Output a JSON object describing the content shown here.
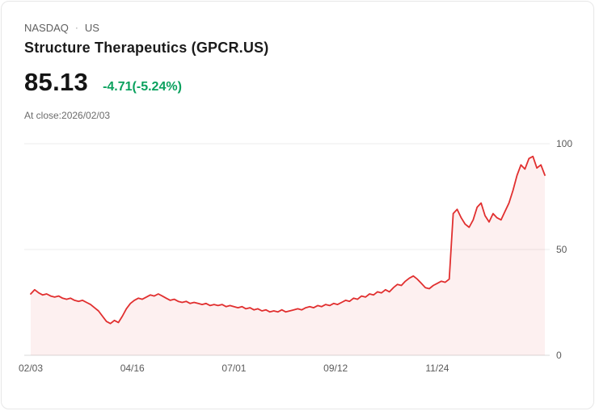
{
  "header": {
    "exchange": "NASDAQ",
    "separator": "·",
    "region": "US",
    "title": "Structure Therapeutics (GPCR.US)",
    "price": "85.13",
    "change": "-4.71(-5.24%)",
    "as_of": "At close:2026/02/03"
  },
  "colors": {
    "line": "#e12f2f",
    "fill": "rgba(225,47,47,0.07)",
    "change_green": "#0aa15e",
    "grid": "#ececec",
    "axis": "#d9d9d9",
    "axis_label": "#5a5a5a"
  },
  "chart_data": {
    "type": "area",
    "series_name": "GPCR.US price",
    "title": "",
    "xlabel": "",
    "ylabel": "",
    "ylim": [
      0,
      100
    ],
    "y_ticks": [
      0,
      50,
      100
    ],
    "y_axis_side": "right",
    "grid": true,
    "legend": false,
    "x_tick_labels": [
      "02/03",
      "04/16",
      "07/01",
      "09/12",
      "11/24"
    ],
    "x_tick_days": [
      0,
      51,
      102,
      153,
      204
    ],
    "day_step": 2,
    "values": [
      29.0,
      31.0,
      29.5,
      28.5,
      29.0,
      28.0,
      27.5,
      28.0,
      27.0,
      26.5,
      27.0,
      26.0,
      25.5,
      26.0,
      25.0,
      24.0,
      22.5,
      21.0,
      18.5,
      16.0,
      15.0,
      16.5,
      15.5,
      18.5,
      22.0,
      24.5,
      26.0,
      27.0,
      26.5,
      27.5,
      28.5,
      28.0,
      29.0,
      28.0,
      27.0,
      26.0,
      26.5,
      25.5,
      25.0,
      25.5,
      24.5,
      25.0,
      24.5,
      24.0,
      24.5,
      23.5,
      24.0,
      23.5,
      24.0,
      23.0,
      23.5,
      23.0,
      22.5,
      23.0,
      22.0,
      22.5,
      21.5,
      22.0,
      21.0,
      21.5,
      20.5,
      21.0,
      20.5,
      21.5,
      20.5,
      21.0,
      21.5,
      22.0,
      21.5,
      22.5,
      23.0,
      22.5,
      23.5,
      23.0,
      24.0,
      23.5,
      24.5,
      24.0,
      25.0,
      26.0,
      25.5,
      27.0,
      26.5,
      28.0,
      27.5,
      29.0,
      28.5,
      30.0,
      29.5,
      31.0,
      30.0,
      32.0,
      33.5,
      33.0,
      35.0,
      36.5,
      37.5,
      36.0,
      34.0,
      32.0,
      31.5,
      33.0,
      34.0,
      35.0,
      34.5,
      36.0,
      67.0,
      69.0,
      65.0,
      62.0,
      60.5,
      64.0,
      70.0,
      72.0,
      66.0,
      63.0,
      67.0,
      65.0,
      64.0,
      68.0,
      72.0,
      78.0,
      85.0,
      90.0,
      88.0,
      93.0,
      94.0,
      88.5,
      90.0,
      85.13
    ]
  }
}
